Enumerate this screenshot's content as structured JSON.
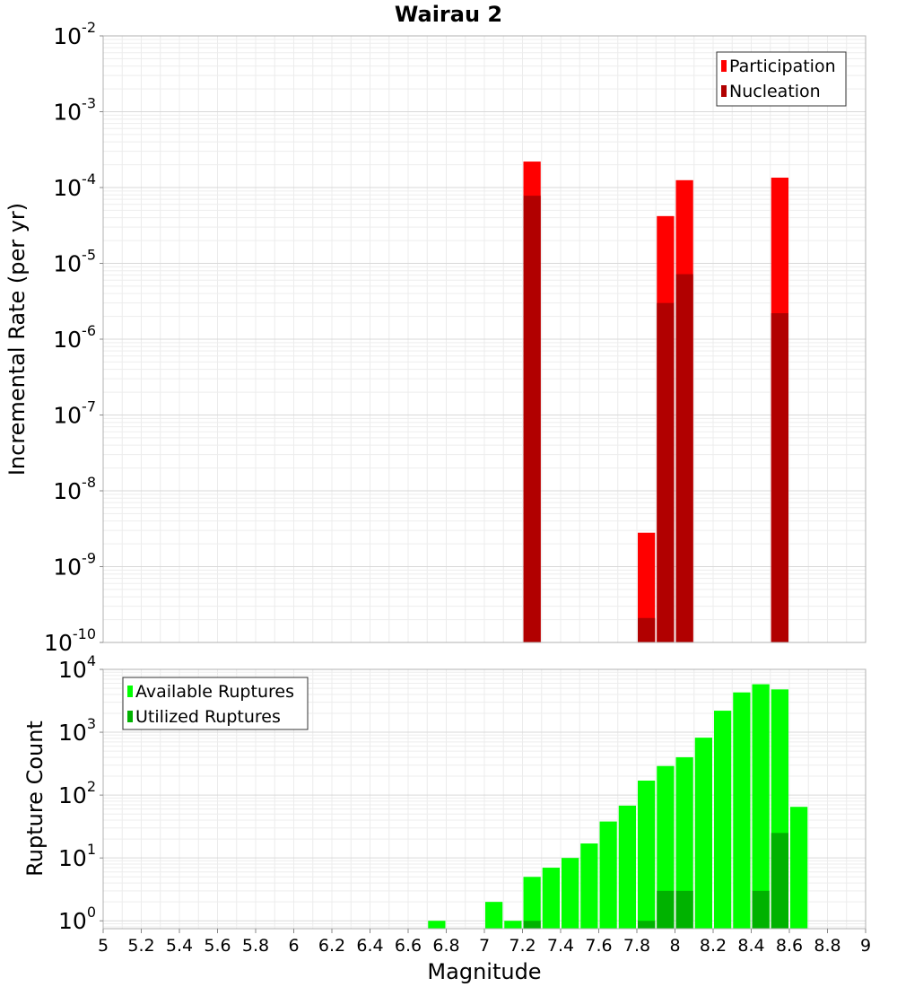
{
  "chart_data": [
    {
      "type": "bar",
      "title": "Wairau 2",
      "ylabel": "Incremental Rate (per yr)",
      "xlabel": "",
      "y_scale": "log",
      "ylim": [
        1e-10,
        0.01
      ],
      "xlim": [
        5,
        9
      ],
      "y_ticks": [
        {
          "base": "10",
          "exp": "-10"
        },
        {
          "base": "10",
          "exp": "-9"
        },
        {
          "base": "10",
          "exp": "-8"
        },
        {
          "base": "10",
          "exp": "-7"
        },
        {
          "base": "10",
          "exp": "-6"
        },
        {
          "base": "10",
          "exp": "-5"
        },
        {
          "base": "10",
          "exp": "-4"
        },
        {
          "base": "10",
          "exp": "-3"
        },
        {
          "base": "10",
          "exp": "-2"
        }
      ],
      "grid": true,
      "legend_position": "top-right",
      "bin_width": 0.1,
      "series": [
        {
          "name": "Participation",
          "color": "#ff0000",
          "x": [
            7.25,
            7.85,
            7.95,
            8.05,
            8.55
          ],
          "values": [
            0.00022,
            2.8e-09,
            4.2e-05,
            0.000125,
            0.000135
          ]
        },
        {
          "name": "Nucleation",
          "color": "#b10000",
          "x": [
            7.25,
            7.85,
            7.95,
            8.05,
            8.55
          ],
          "values": [
            7.8e-05,
            2.1e-10,
            3e-06,
            7.2e-06,
            2.2e-06
          ]
        }
      ]
    },
    {
      "type": "bar",
      "title": "",
      "ylabel": "Rupture Count",
      "xlabel": "Magnitude",
      "y_scale": "log",
      "ylim": [
        0.75,
        10000
      ],
      "xlim": [
        5,
        9
      ],
      "y_ticks": [
        {
          "base": "10",
          "exp": "0"
        },
        {
          "base": "10",
          "exp": "1"
        },
        {
          "base": "10",
          "exp": "2"
        },
        {
          "base": "10",
          "exp": "3"
        },
        {
          "base": "10",
          "exp": "4"
        }
      ],
      "x_ticks": [
        "5",
        "5.2",
        "5.4",
        "5.6",
        "5.8",
        "6",
        "6.2",
        "6.4",
        "6.6",
        "6.8",
        "7",
        "7.2",
        "7.4",
        "7.6",
        "7.8",
        "8",
        "8.2",
        "8.4",
        "8.6",
        "8.8",
        "9"
      ],
      "grid": true,
      "legend_position": "top-left",
      "bin_width": 0.1,
      "series": [
        {
          "name": "Available Ruptures",
          "color": "#00ff00",
          "x": [
            6.75,
            7.05,
            7.15,
            7.25,
            7.35,
            7.45,
            7.55,
            7.65,
            7.75,
            7.85,
            7.95,
            8.05,
            8.15,
            8.25,
            8.35,
            8.45,
            8.55,
            8.65
          ],
          "values": [
            1,
            2,
            1,
            5,
            7,
            10,
            17,
            38,
            68,
            170,
            290,
            400,
            820,
            2200,
            4300,
            5800,
            4800,
            65
          ]
        },
        {
          "name": "Utilized Ruptures",
          "color": "#00b200",
          "x": [
            7.25,
            7.85,
            7.95,
            8.05,
            8.45,
            8.55
          ],
          "values": [
            1,
            1,
            3,
            3,
            3,
            25
          ]
        }
      ]
    }
  ]
}
